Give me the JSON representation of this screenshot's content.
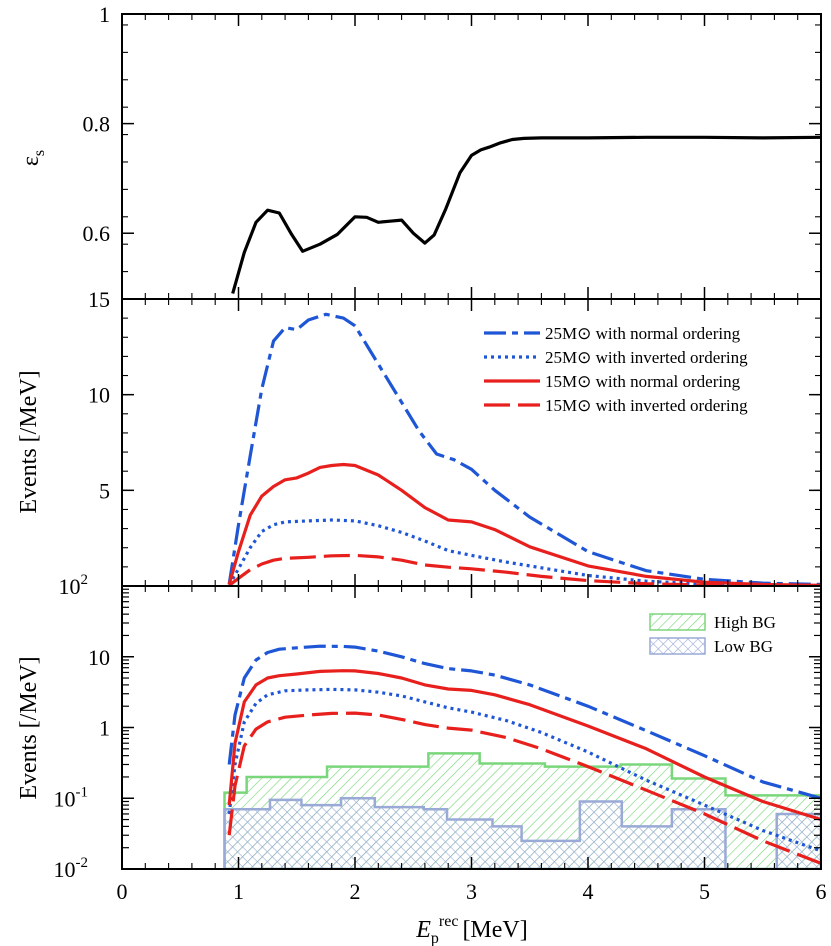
{
  "chart_data": [
    {
      "id": "efficiency",
      "type": "line",
      "title": "",
      "ylabel": "ε_s",
      "ylabel_main": "ε",
      "ylabel_sub": "s",
      "xlim": [
        0,
        6
      ],
      "ylim": [
        0.48,
        1.0
      ],
      "yscale": "linear",
      "yticks": [
        {
          "v": 1.0,
          "label": "1"
        },
        {
          "v": 0.8,
          "label": "0.8"
        },
        {
          "v": 0.6,
          "label": "0.6"
        }
      ],
      "series": [
        {
          "name": "efficiency",
          "color": "#000000",
          "style": "solid",
          "x": [
            0.95,
            1.05,
            1.15,
            1.25,
            1.35,
            1.45,
            1.55,
            1.7,
            1.85,
            2.0,
            2.1,
            2.2,
            2.3,
            2.4,
            2.5,
            2.6,
            2.68,
            2.78,
            2.9,
            3.0,
            3.08,
            3.15,
            3.25,
            3.35,
            3.45,
            3.6,
            4.0,
            4.5,
            5.0,
            5.5,
            6.0
          ],
          "y": [
            0.49,
            0.565,
            0.62,
            0.642,
            0.637,
            0.6,
            0.567,
            0.58,
            0.598,
            0.63,
            0.629,
            0.62,
            0.622,
            0.624,
            0.6,
            0.582,
            0.597,
            0.645,
            0.71,
            0.742,
            0.752,
            0.757,
            0.765,
            0.771,
            0.773,
            0.774,
            0.774,
            0.775,
            0.775,
            0.774,
            0.775
          ]
        }
      ]
    },
    {
      "id": "events-linear",
      "type": "line",
      "ylabel": "Events [/MeV]",
      "xlim": [
        0,
        6
      ],
      "ylim": [
        0,
        15
      ],
      "yscale": "linear",
      "yticks": [
        {
          "v": 15,
          "label": "15"
        },
        {
          "v": 10,
          "label": "10"
        },
        {
          "v": 5,
          "label": "5"
        }
      ],
      "legend_position": "top-right",
      "legend": [
        {
          "label": "25M⊙ with normal ordering",
          "color": "#1e56d6",
          "style": "dashdot"
        },
        {
          "label": "25M⊙ with inverted ordering",
          "color": "#1e56d6",
          "style": "dotted"
        },
        {
          "label": "15M⊙ with normal ordering",
          "color": "#e8201d",
          "style": "solid"
        },
        {
          "label": "15M⊙ with inverted ordering",
          "color": "#e8201d",
          "style": "longdash"
        }
      ],
      "series": [
        {
          "name": "25M⊙ with normal ordering",
          "color": "#1e56d6",
          "style": "dashdot",
          "x": [
            0.92,
            1.0,
            1.1,
            1.2,
            1.3,
            1.4,
            1.5,
            1.6,
            1.75,
            1.9,
            2.0,
            2.2,
            2.4,
            2.55,
            2.7,
            2.85,
            3.0,
            3.2,
            3.5,
            4.0,
            4.5,
            5.0,
            5.5,
            6.0
          ],
          "y": [
            0.1,
            3.2,
            6.8,
            10.3,
            12.8,
            13.5,
            13.4,
            13.9,
            14.2,
            14.0,
            13.6,
            11.6,
            9.6,
            8.1,
            6.9,
            6.6,
            6.1,
            5.0,
            3.6,
            1.8,
            0.8,
            0.35,
            0.15,
            0.08
          ]
        },
        {
          "name": "25M⊙ with inverted ordering",
          "color": "#1e56d6",
          "style": "dotted",
          "x": [
            0.92,
            1.0,
            1.1,
            1.2,
            1.3,
            1.4,
            1.6,
            1.8,
            2.0,
            2.2,
            2.4,
            2.6,
            2.8,
            3.0,
            3.3,
            3.6,
            4.0,
            4.5,
            5.0,
            5.5,
            6.0
          ],
          "y": [
            0.05,
            0.9,
            2.0,
            2.85,
            3.2,
            3.35,
            3.4,
            3.45,
            3.4,
            3.15,
            2.8,
            2.35,
            1.85,
            1.6,
            1.25,
            0.95,
            0.55,
            0.25,
            0.1,
            0.04,
            0.02
          ]
        },
        {
          "name": "15M⊙ with normal ordering",
          "color": "#e8201d",
          "style": "solid",
          "x": [
            0.92,
            1.0,
            1.1,
            1.2,
            1.3,
            1.4,
            1.5,
            1.6,
            1.7,
            1.8,
            1.9,
            2.0,
            2.2,
            2.4,
            2.6,
            2.8,
            3.0,
            3.2,
            3.5,
            4.0,
            4.5,
            5.0,
            5.5,
            6.0
          ],
          "y": [
            0.08,
            1.8,
            3.7,
            4.7,
            5.2,
            5.55,
            5.65,
            5.9,
            6.2,
            6.3,
            6.35,
            6.3,
            5.8,
            5.0,
            4.1,
            3.45,
            3.35,
            2.95,
            2.05,
            1.05,
            0.5,
            0.2,
            0.08,
            0.03
          ]
        },
        {
          "name": "15M⊙ with inverted ordering",
          "color": "#e8201d",
          "style": "longdash",
          "x": [
            0.92,
            1.0,
            1.1,
            1.2,
            1.3,
            1.4,
            1.6,
            1.8,
            2.0,
            2.2,
            2.4,
            2.6,
            2.8,
            3.0,
            3.3,
            3.6,
            4.0,
            4.5,
            5.0,
            5.5,
            6.0
          ],
          "y": [
            0.03,
            0.4,
            0.85,
            1.15,
            1.35,
            1.45,
            1.5,
            1.58,
            1.6,
            1.52,
            1.35,
            1.1,
            0.98,
            0.9,
            0.72,
            0.5,
            0.28,
            0.12,
            0.05,
            0.02,
            0.01
          ]
        }
      ]
    },
    {
      "id": "events-log",
      "type": "line",
      "ylabel": "Events [/MeV]",
      "xlabel": "E_p^rec [MeV]",
      "xlabel_main": "E",
      "xlabel_sub": "p",
      "xlabel_sup": "rec",
      "xlabel_unit": "[MeV]",
      "xlim": [
        0,
        6
      ],
      "ylim": [
        0.01,
        100
      ],
      "yscale": "log",
      "yticks": [
        {
          "v": 100,
          "label": "10",
          "sup": "2"
        },
        {
          "v": 10,
          "label": "10"
        },
        {
          "v": 1,
          "label": "1"
        },
        {
          "v": 0.1,
          "label": "10",
          "sup": "-1"
        },
        {
          "v": 0.01,
          "label": "10",
          "sup": "-2"
        }
      ],
      "xticks": [
        {
          "v": 0,
          "label": "0"
        },
        {
          "v": 1,
          "label": "1"
        },
        {
          "v": 2,
          "label": "2"
        },
        {
          "v": 3,
          "label": "3"
        },
        {
          "v": 4,
          "label": "4"
        },
        {
          "v": 5,
          "label": "5"
        },
        {
          "v": 6,
          "label": "6"
        }
      ],
      "legend_position": "top-right",
      "legend": [
        {
          "label": "High BG",
          "color": "#7ad67a",
          "fill": "hatch"
        },
        {
          "label": "Low BG",
          "color": "#9aaad6",
          "fill": "crosshatch"
        }
      ],
      "histograms": [
        {
          "name": "High BG",
          "color": "#7ad67a",
          "hatch": "diagonal",
          "edges": [
            0.88,
            1.07,
            1.76,
            2.63,
            3.07,
            3.63,
            4.28,
            4.72,
            5.18,
            6.0
          ],
          "values": [
            0.12,
            0.2,
            0.28,
            0.43,
            0.31,
            0.28,
            0.3,
            0.19,
            0.11
          ]
        },
        {
          "name": "Low BG",
          "color": "#9aaad6",
          "hatch": "cross",
          "edges": [
            0.88,
            1.27,
            1.54,
            1.88,
            2.17,
            2.59,
            2.79,
            3.18,
            3.43,
            3.93,
            4.29,
            4.72,
            5.18,
            5.62,
            6.0
          ],
          "values": [
            0.07,
            0.095,
            0.08,
            0.1,
            0.075,
            0.07,
            0.05,
            0.04,
            0.025,
            0.09,
            0.04,
            0.07,
            0.01,
            0.06
          ]
        }
      ],
      "series": [
        {
          "name": "25M⊙ with normal ordering",
          "color": "#1e56d6",
          "style": "dashdot",
          "x": [
            0.92,
            0.97,
            1.05,
            1.15,
            1.25,
            1.35,
            1.5,
            1.7,
            1.9,
            2.0,
            2.2,
            2.4,
            2.6,
            2.8,
            3.0,
            3.2,
            3.5,
            4.0,
            4.5,
            5.0,
            5.5,
            6.0
          ],
          "y": [
            0.3,
            1.5,
            5.0,
            9.0,
            11.5,
            12.8,
            13.4,
            14.1,
            14.0,
            13.7,
            12.0,
            10.0,
            8.0,
            6.8,
            6.3,
            5.5,
            4.0,
            2.0,
            0.9,
            0.4,
            0.17,
            0.1
          ]
        },
        {
          "name": "25M⊙ with inverted ordering",
          "color": "#1e56d6",
          "style": "dotted",
          "x": [
            0.92,
            0.97,
            1.05,
            1.15,
            1.25,
            1.4,
            1.6,
            1.8,
            2.0,
            2.2,
            2.4,
            2.6,
            2.8,
            3.0,
            3.3,
            3.6,
            4.0,
            4.5,
            5.0,
            5.5,
            6.0
          ],
          "y": [
            0.06,
            0.3,
            1.2,
            2.2,
            2.9,
            3.3,
            3.4,
            3.45,
            3.4,
            3.15,
            2.8,
            2.3,
            1.9,
            1.65,
            1.25,
            0.85,
            0.45,
            0.18,
            0.08,
            0.035,
            0.018
          ]
        },
        {
          "name": "15M⊙ with normal ordering",
          "color": "#e8201d",
          "style": "solid",
          "x": [
            0.92,
            0.97,
            1.05,
            1.15,
            1.25,
            1.35,
            1.5,
            1.7,
            1.9,
            2.0,
            2.2,
            2.4,
            2.6,
            2.8,
            3.0,
            3.2,
            3.5,
            4.0,
            4.5,
            5.0,
            5.5,
            6.0
          ],
          "y": [
            0.08,
            0.6,
            2.3,
            4.0,
            5.0,
            5.4,
            5.7,
            6.2,
            6.35,
            6.3,
            5.8,
            5.0,
            4.0,
            3.5,
            3.35,
            2.9,
            2.1,
            1.05,
            0.5,
            0.2,
            0.09,
            0.05
          ]
        },
        {
          "name": "15M⊙ with inverted ordering",
          "color": "#e8201d",
          "style": "longdash",
          "x": [
            0.92,
            0.97,
            1.05,
            1.15,
            1.25,
            1.4,
            1.6,
            1.8,
            2.0,
            2.2,
            2.4,
            2.6,
            2.8,
            3.0,
            3.3,
            3.6,
            4.0,
            4.5,
            5.0,
            5.5,
            6.0
          ],
          "y": [
            0.03,
            0.15,
            0.55,
            0.95,
            1.2,
            1.4,
            1.5,
            1.58,
            1.6,
            1.5,
            1.3,
            1.1,
            0.98,
            0.92,
            0.72,
            0.5,
            0.28,
            0.13,
            0.06,
            0.025,
            0.012
          ]
        }
      ]
    }
  ]
}
